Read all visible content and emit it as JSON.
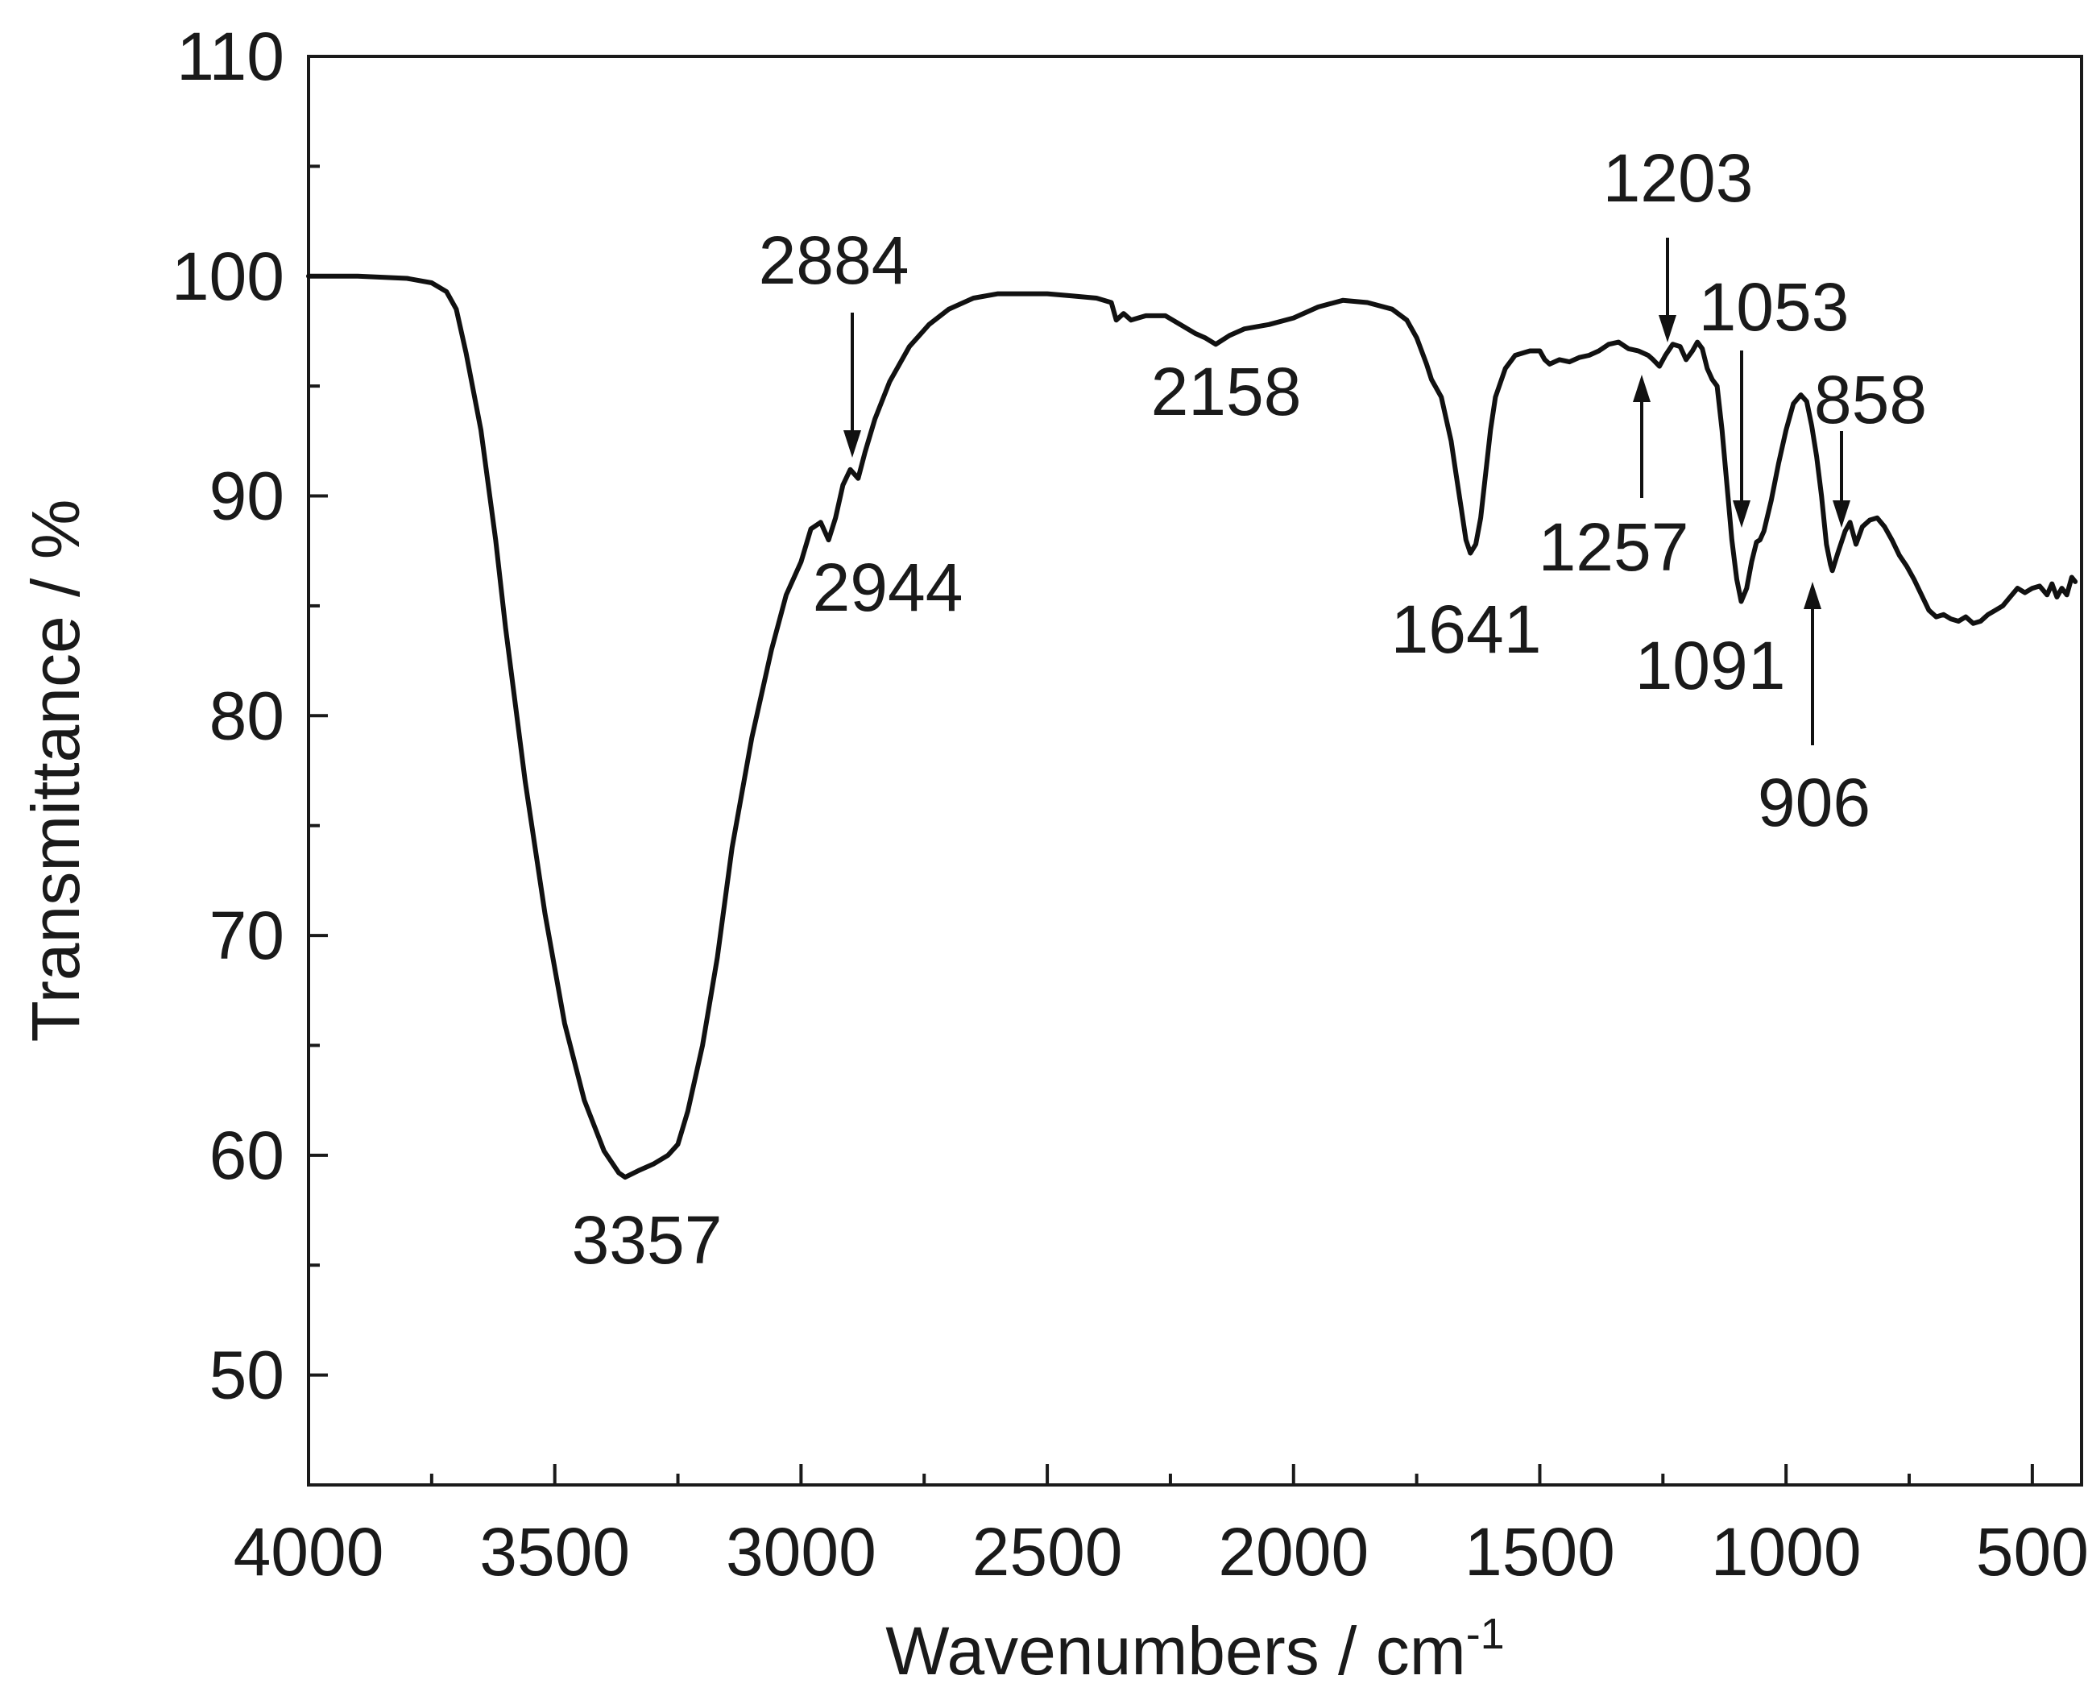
{
  "chart_data": {
    "type": "line",
    "xlabel": "Wavenumbers / cm",
    "xlabel_superscript": "-1",
    "ylabel": "Transmittance / %",
    "xlim": [
      4000,
      400
    ],
    "ylim": [
      45,
      110
    ],
    "x_reversed": true,
    "grid": false,
    "legend": "none",
    "x_ticks": [
      4000,
      3500,
      3000,
      2500,
      2000,
      1500,
      1000,
      500
    ],
    "y_ticks": [
      50,
      60,
      70,
      80,
      90,
      100,
      110
    ],
    "series": [
      {
        "color": "#111111",
        "points": [
          [
            4000,
            100.0
          ],
          [
            3900,
            100.0
          ],
          [
            3800,
            99.9
          ],
          [
            3750,
            99.7
          ],
          [
            3720,
            99.3
          ],
          [
            3700,
            98.5
          ],
          [
            3680,
            96.5
          ],
          [
            3650,
            93.0
          ],
          [
            3620,
            88.0
          ],
          [
            3600,
            84.0
          ],
          [
            3560,
            77.0
          ],
          [
            3520,
            71.0
          ],
          [
            3480,
            66.0
          ],
          [
            3440,
            62.5
          ],
          [
            3400,
            60.2
          ],
          [
            3370,
            59.2
          ],
          [
            3357,
            59.0
          ],
          [
            3330,
            59.3
          ],
          [
            3300,
            59.6
          ],
          [
            3270,
            60.0
          ],
          [
            3250,
            60.5
          ],
          [
            3230,
            62.0
          ],
          [
            3200,
            65.0
          ],
          [
            3170,
            69.0
          ],
          [
            3140,
            74.0
          ],
          [
            3100,
            79.0
          ],
          [
            3060,
            83.0
          ],
          [
            3030,
            85.5
          ],
          [
            3000,
            87.0
          ],
          [
            2980,
            88.5
          ],
          [
            2960,
            88.8
          ],
          [
            2944,
            88.0
          ],
          [
            2930,
            89.0
          ],
          [
            2915,
            90.5
          ],
          [
            2900,
            91.2
          ],
          [
            2884,
            90.8
          ],
          [
            2870,
            92.0
          ],
          [
            2850,
            93.5
          ],
          [
            2820,
            95.2
          ],
          [
            2780,
            96.8
          ],
          [
            2740,
            97.8
          ],
          [
            2700,
            98.5
          ],
          [
            2650,
            99.0
          ],
          [
            2600,
            99.2
          ],
          [
            2550,
            99.2
          ],
          [
            2500,
            99.2
          ],
          [
            2450,
            99.1
          ],
          [
            2400,
            99.0
          ],
          [
            2370,
            98.8
          ],
          [
            2360,
            98.0
          ],
          [
            2345,
            98.3
          ],
          [
            2330,
            98.0
          ],
          [
            2300,
            98.2
          ],
          [
            2260,
            98.2
          ],
          [
            2230,
            97.8
          ],
          [
            2200,
            97.4
          ],
          [
            2180,
            97.2
          ],
          [
            2158,
            96.9
          ],
          [
            2130,
            97.3
          ],
          [
            2100,
            97.6
          ],
          [
            2050,
            97.8
          ],
          [
            2000,
            98.1
          ],
          [
            1950,
            98.6
          ],
          [
            1900,
            98.9
          ],
          [
            1850,
            98.8
          ],
          [
            1800,
            98.5
          ],
          [
            1770,
            98.0
          ],
          [
            1750,
            97.2
          ],
          [
            1730,
            96.0
          ],
          [
            1720,
            95.3
          ],
          [
            1700,
            94.5
          ],
          [
            1690,
            93.5
          ],
          [
            1680,
            92.5
          ],
          [
            1670,
            91.0
          ],
          [
            1660,
            89.5
          ],
          [
            1650,
            88.0
          ],
          [
            1641,
            87.4
          ],
          [
            1630,
            87.8
          ],
          [
            1620,
            89.0
          ],
          [
            1610,
            91.0
          ],
          [
            1600,
            93.0
          ],
          [
            1590,
            94.5
          ],
          [
            1570,
            95.8
          ],
          [
            1550,
            96.4
          ],
          [
            1520,
            96.6
          ],
          [
            1500,
            96.6
          ],
          [
            1490,
            96.2
          ],
          [
            1480,
            96.0
          ],
          [
            1460,
            96.2
          ],
          [
            1440,
            96.1
          ],
          [
            1420,
            96.3
          ],
          [
            1400,
            96.4
          ],
          [
            1380,
            96.6
          ],
          [
            1360,
            96.9
          ],
          [
            1340,
            97.0
          ],
          [
            1320,
            96.7
          ],
          [
            1300,
            96.6
          ],
          [
            1280,
            96.4
          ],
          [
            1270,
            96.2
          ],
          [
            1257,
            95.9
          ],
          [
            1245,
            96.4
          ],
          [
            1230,
            96.9
          ],
          [
            1215,
            96.8
          ],
          [
            1203,
            96.2
          ],
          [
            1190,
            96.6
          ],
          [
            1180,
            97.0
          ],
          [
            1170,
            96.7
          ],
          [
            1160,
            95.8
          ],
          [
            1150,
            95.3
          ],
          [
            1140,
            95.0
          ],
          [
            1130,
            93.0
          ],
          [
            1120,
            90.5
          ],
          [
            1110,
            88.0
          ],
          [
            1100,
            86.2
          ],
          [
            1091,
            85.2
          ],
          [
            1080,
            85.8
          ],
          [
            1070,
            87.0
          ],
          [
            1060,
            87.9
          ],
          [
            1053,
            88.0
          ],
          [
            1045,
            88.4
          ],
          [
            1030,
            89.8
          ],
          [
            1015,
            91.5
          ],
          [
            1000,
            93.0
          ],
          [
            985,
            94.2
          ],
          [
            970,
            94.6
          ],
          [
            958,
            94.3
          ],
          [
            948,
            93.2
          ],
          [
            938,
            91.8
          ],
          [
            928,
            90.0
          ],
          [
            918,
            87.8
          ],
          [
            910,
            86.9
          ],
          [
            906,
            86.6
          ],
          [
            895,
            87.4
          ],
          [
            880,
            88.4
          ],
          [
            870,
            88.8
          ],
          [
            858,
            87.8
          ],
          [
            845,
            88.6
          ],
          [
            830,
            88.9
          ],
          [
            815,
            89.0
          ],
          [
            800,
            88.6
          ],
          [
            785,
            88.0
          ],
          [
            770,
            87.3
          ],
          [
            755,
            86.8
          ],
          [
            740,
            86.2
          ],
          [
            725,
            85.5
          ],
          [
            710,
            84.8
          ],
          [
            695,
            84.5
          ],
          [
            680,
            84.6
          ],
          [
            665,
            84.4
          ],
          [
            650,
            84.3
          ],
          [
            635,
            84.5
          ],
          [
            620,
            84.2
          ],
          [
            605,
            84.3
          ],
          [
            590,
            84.6
          ],
          [
            575,
            84.8
          ],
          [
            560,
            85.0
          ],
          [
            545,
            85.4
          ],
          [
            530,
            85.8
          ],
          [
            515,
            85.6
          ],
          [
            500,
            85.8
          ],
          [
            485,
            85.9
          ],
          [
            470,
            85.5
          ],
          [
            460,
            86.0
          ],
          [
            450,
            85.4
          ],
          [
            440,
            85.8
          ],
          [
            430,
            85.5
          ],
          [
            420,
            86.3
          ],
          [
            413,
            86.1
          ]
        ]
      }
    ],
    "annotations": [
      {
        "label": "3357",
        "x": 3357,
        "y": 59.0,
        "arrow": "none"
      },
      {
        "label": "2944",
        "x": 2944,
        "y": 88.0,
        "arrow": "none"
      },
      {
        "label": "2884",
        "x": 2884,
        "y": 90.8,
        "arrow": "down"
      },
      {
        "label": "2158",
        "x": 2158,
        "y": 96.9,
        "arrow": "none"
      },
      {
        "label": "1641",
        "x": 1641,
        "y": 87.4,
        "arrow": "none"
      },
      {
        "label": "1257",
        "x": 1257,
        "y": 95.9,
        "arrow": "up"
      },
      {
        "label": "1203",
        "x": 1203,
        "y": 96.2,
        "arrow": "down"
      },
      {
        "label": "1091",
        "x": 1091,
        "y": 85.2,
        "arrow": "none"
      },
      {
        "label": "1053",
        "x": 1053,
        "y": 88.0,
        "arrow": "down"
      },
      {
        "label": "906",
        "x": 906,
        "y": 86.6,
        "arrow": "up"
      },
      {
        "label": "858",
        "x": 858,
        "y": 87.8,
        "arrow": "down"
      }
    ]
  }
}
